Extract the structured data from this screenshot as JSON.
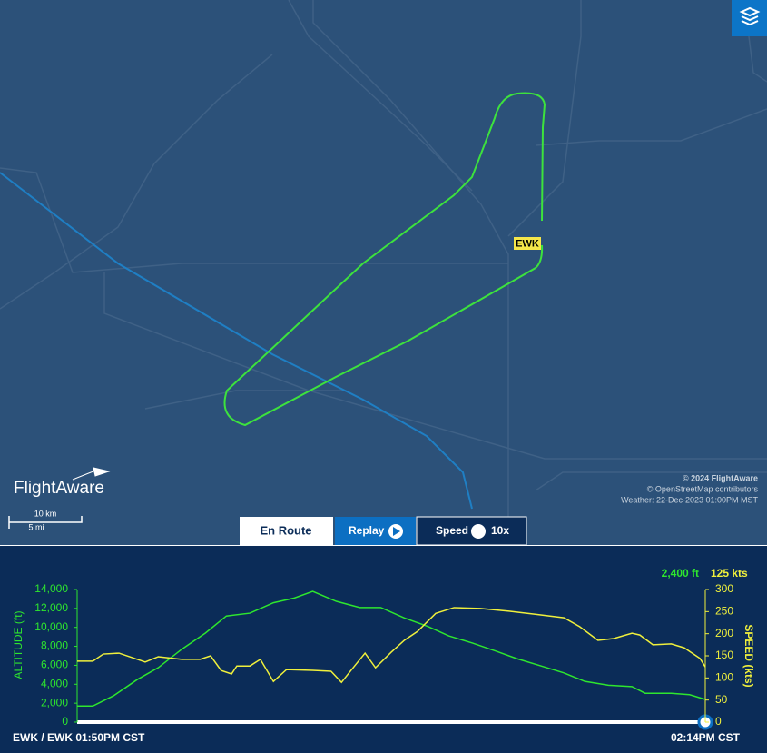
{
  "map": {
    "airport_label": "EWK",
    "brand": "FlightAware",
    "scale_km": "10 km",
    "scale_mi": "5 mi",
    "attribution": [
      "© 2024 FlightAware",
      "© OpenStreetMap contributors",
      "Weather: 22-Dec-2023 01:00PM MST"
    ]
  },
  "controls": {
    "tab": "En Route",
    "replay": "Replay",
    "speed": "Speed",
    "speed_value": "10x"
  },
  "chart_data": {
    "type": "line",
    "y_label": "ALTITUDE (ft)",
    "y2_label": "SPEED (kts)",
    "current_altitude": "2,400 ft",
    "current_speed": "125 kts",
    "start_label": "EWK / EWK 01:50PM CST",
    "end_label": "02:14PM CST",
    "xlim": [
      0,
      24
    ],
    "ylim": [
      0,
      14000
    ],
    "yticks": [
      0,
      {
        "value": 2000,
        "label": "2,000"
      },
      {
        "value": 4000,
        "label": "4,000"
      },
      {
        "value": 6000,
        "label": "6,000"
      },
      {
        "value": 8000,
        "label": "8,000"
      },
      {
        "value": 10000,
        "label": "10,000"
      },
      {
        "value": 12000,
        "label": "12,000"
      },
      {
        "value": 14000,
        "label": "14,000"
      }
    ],
    "y2lim": [
      0,
      300
    ],
    "y2ticks": [
      0,
      50,
      100,
      150,
      200,
      250,
      300
    ],
    "series": [
      {
        "color": "#2ee62e",
        "x": [
          0,
          0.6,
          1.4,
          2.3,
          3.1,
          4.0,
          4.9,
          5.7,
          6.6,
          7.5,
          8.3,
          9.0,
          9.9,
          10.8,
          11.6,
          12.5,
          13.4,
          14.2,
          15.1,
          16.0,
          16.8,
          17.7,
          18.6,
          19.4,
          20.3,
          21.2,
          21.7,
          22.7,
          23.4,
          24
        ],
        "values": [
          1700,
          1700,
          2800,
          4500,
          5750,
          7700,
          9400,
          11200,
          11500,
          12600,
          13100,
          13800,
          12750,
          12100,
          12100,
          11000,
          10100,
          9100,
          8350,
          7500,
          6700,
          5950,
          5200,
          4300,
          3900,
          3750,
          3050,
          3050,
          2900,
          2400
        ]
      },
      {
        "color": "#f0f03c",
        "axis": "y2",
        "x": [
          0,
          0.6,
          1.0,
          1.6,
          2.1,
          2.6,
          3.1,
          4.0,
          4.7,
          5.1,
          5.5,
          5.9,
          6.1,
          6.6,
          7.0,
          7.5,
          8.0,
          9.0,
          9.7,
          10.1,
          10.6,
          11.0,
          11.4,
          12.0,
          12.5,
          13.0,
          13.7,
          14.4,
          15.4,
          16.5,
          17.5,
          18.6,
          19.2,
          19.9,
          20.5,
          21.2,
          21.5,
          22.0,
          22.7,
          23.2,
          23.8,
          24
        ],
        "values": [
          138,
          138,
          154,
          156,
          146,
          136,
          148,
          142,
          142,
          150,
          117,
          109,
          127,
          127,
          142,
          92,
          119,
          117,
          115,
          90,
          127,
          156,
          123,
          158,
          185,
          205,
          246,
          259,
          257,
          251,
          244,
          236,
          216,
          185,
          189,
          201,
          197,
          175,
          177,
          168,
          144,
          125
        ]
      }
    ]
  }
}
